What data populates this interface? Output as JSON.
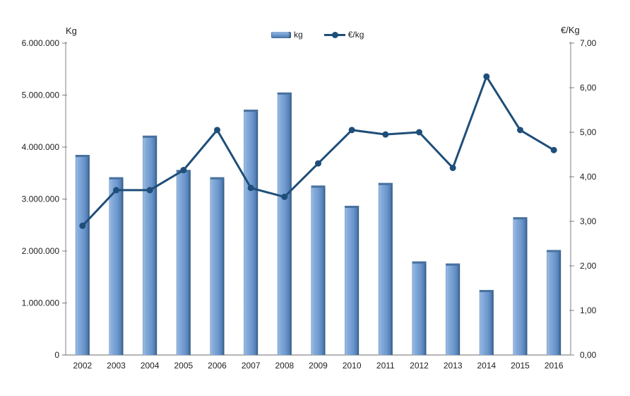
{
  "chart_data": {
    "type": "combo",
    "title": "",
    "categories": [
      "2002",
      "2003",
      "2004",
      "2005",
      "2006",
      "2007",
      "2008",
      "2009",
      "2010",
      "2011",
      "2012",
      "2013",
      "2014",
      "2015",
      "2016"
    ],
    "series": [
      {
        "name": "kg",
        "type": "bar",
        "axis": "left",
        "values": [
          3850000,
          3420000,
          4220000,
          3560000,
          3420000,
          4720000,
          5050000,
          3260000,
          2870000,
          3310000,
          1800000,
          1760000,
          1250000,
          2650000,
          2020000
        ]
      },
      {
        "name": "€/kg",
        "type": "line",
        "axis": "right",
        "values": [
          2.9,
          3.7,
          3.7,
          4.15,
          5.05,
          3.75,
          3.55,
          4.3,
          5.05,
          4.95,
          5.0,
          4.2,
          6.25,
          5.05,
          4.6
        ]
      }
    ],
    "left_axis": {
      "title": "Kg",
      "min": 0,
      "max": 6000000,
      "tick_labels": [
        "6.000.000",
        "5.000.000",
        "4.000.000",
        "3.000.000",
        "2.000.000",
        "1.000.000",
        "0"
      ]
    },
    "right_axis": {
      "title": "€/Kg",
      "min": 0,
      "max": 7,
      "tick_labels": [
        "7,00",
        "6,00",
        "5,00",
        "4,00",
        "3,00",
        "2,00",
        "1,00",
        "0,00"
      ]
    },
    "legend": {
      "position": "top-center",
      "entries": [
        "kg",
        "€/kg"
      ]
    },
    "layout": {
      "grid": false
    },
    "colors": {
      "bar_fill": "#6c96cc",
      "bar_highlight": "#9bbce4",
      "bar_edge_dark": "#2e537a",
      "bar_top_cap": "#48719f",
      "line": "#1f4e79",
      "axis": "#808080",
      "text": "#1f1f1f"
    }
  }
}
